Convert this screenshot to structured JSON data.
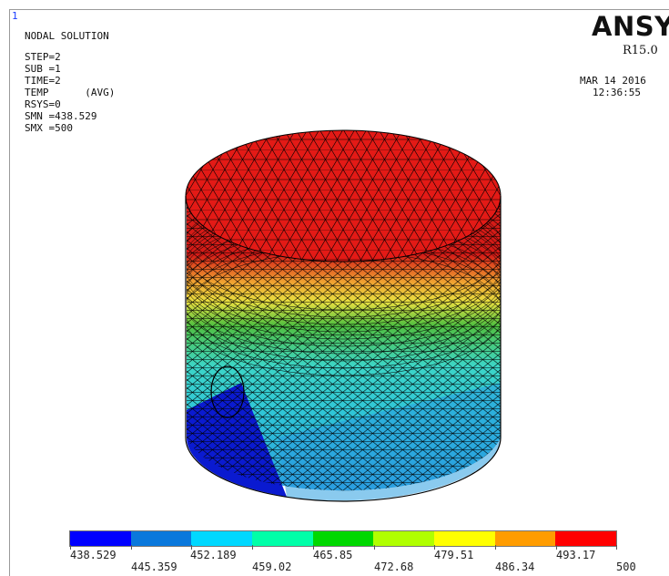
{
  "window": {
    "number": "1"
  },
  "info": {
    "title": "NODAL SOLUTION",
    "step": "STEP=2",
    "sub": "SUB =1",
    "time": "TIME=2",
    "temp": "TEMP      (AVG)",
    "rsys": "RSYS=0",
    "smn": "SMN =438.529",
    "smx": "SMX =500"
  },
  "brand": {
    "logo": "ANSYS",
    "release": "R15.0"
  },
  "timestamp": {
    "date": "MAR 14 2016",
    "time": "12:36:55"
  },
  "legend": {
    "colors": [
      "#0000ff",
      "#0a78dc",
      "#00d8ff",
      "#00ffa8",
      "#00d800",
      "#b0ff00",
      "#ffff00",
      "#ff9c00",
      "#ff0000"
    ],
    "labels_top": [
      "438.529",
      "452.189",
      "465.85",
      "479.51",
      "493.17"
    ],
    "labels_bottom": [
      "445.359",
      "459.02",
      "472.68",
      "486.34",
      "500"
    ]
  },
  "model": {
    "colors": {
      "top": "#e31a16",
      "rim": "#d41b17",
      "band_orange": "#f0a030",
      "band_yellow": "#e8e040",
      "band_green": "#50c040",
      "body_cyan": "#3cd6c8",
      "body_mid": "#2ec4d8",
      "body_lower": "#2a9ee0",
      "blue": "#0a1ad0",
      "mesh": "#000000"
    }
  }
}
